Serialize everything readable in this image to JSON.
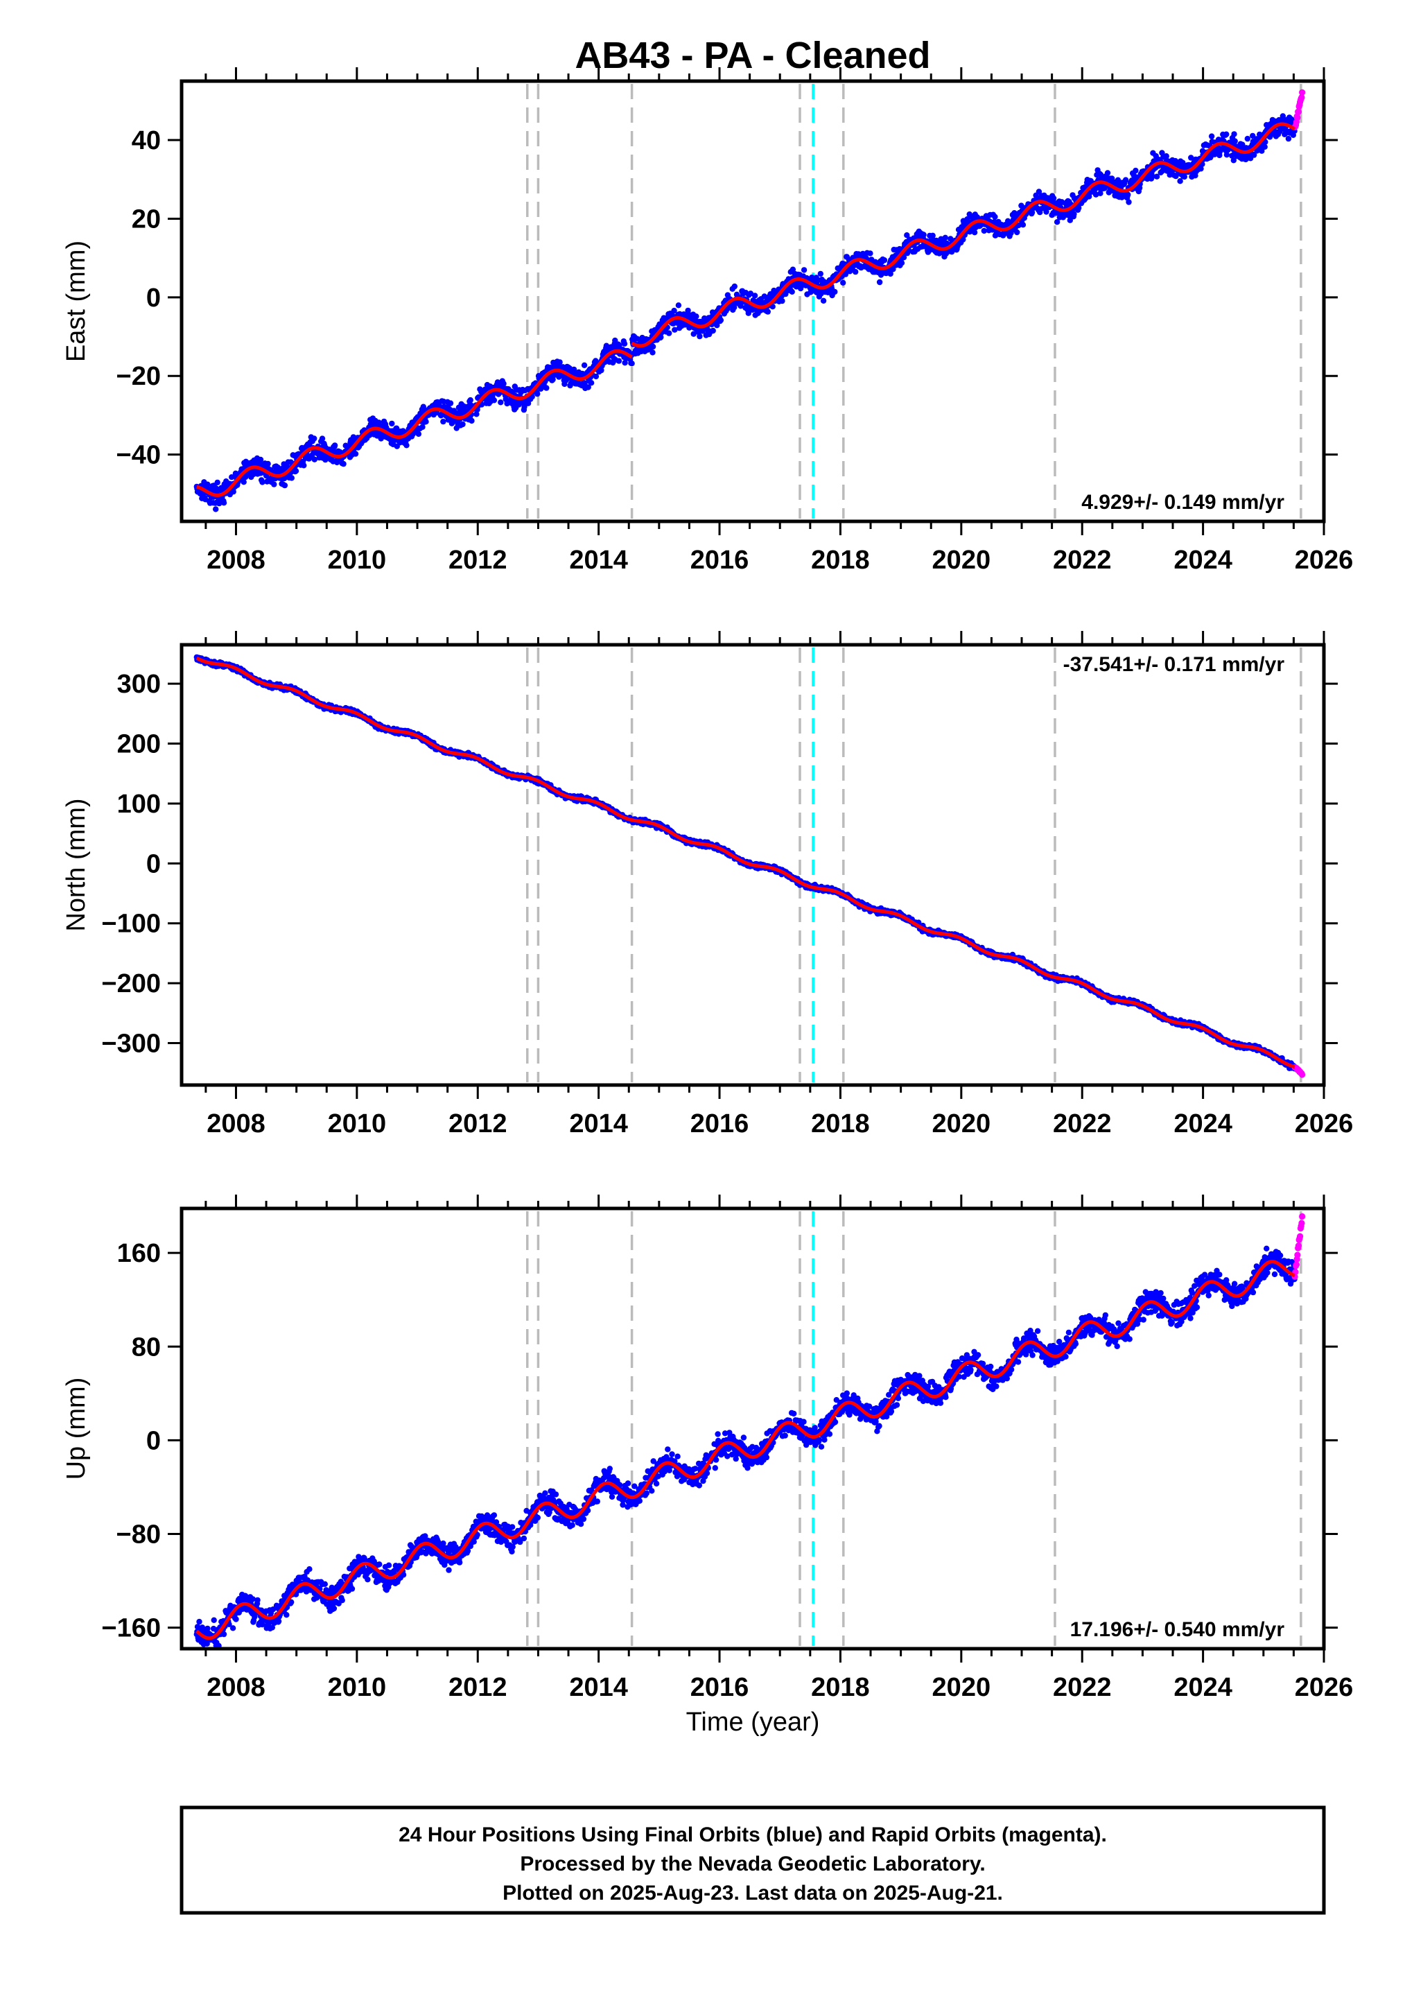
{
  "title": "AB43  - PA - Cleaned",
  "x_axis_label": "Time (year)",
  "footer_lines": [
    "24 Hour Positions Using Final Orbits (blue) and Rapid Orbits (magenta).",
    "Processed by the Nevada Geodetic Laboratory.",
    "Plotted on 2025-Aug-23. Last data on 2025-Aug-21."
  ],
  "colors": {
    "final_orbits": "#0000ff",
    "rapid_orbits": "#ff00ff",
    "model_fit": "#ff0000",
    "equipment_change": "#bbbbbb",
    "earthquake": "#00ffff"
  },
  "chart_data": [
    {
      "type": "scatter",
      "ylabel": "East (mm)",
      "rate_label": "4.929+/- 0.149 mm/yr",
      "rate_position": "bottom-right",
      "xlim": [
        2007.1,
        2026.0
      ],
      "ylim": [
        -57,
        55
      ],
      "x_ticks": [
        2008,
        2010,
        2012,
        2014,
        2016,
        2018,
        2020,
        2022,
        2024,
        2026
      ],
      "y_ticks": [
        -40,
        -20,
        0,
        20,
        40
      ],
      "y_tick_labels": [
        "−40",
        "−20",
        "0",
        "20",
        "40"
      ],
      "start": 2007.35,
      "end_final": 2025.52,
      "end": 2025.64,
      "value_at_start": -50,
      "rate_mm_per_yr": 4.929,
      "annual_amplitude": 2.2,
      "annual_phase": 0.0,
      "noise": 1.3,
      "offsets": [
        {
          "t": 2014.55,
          "dy": 3.5
        }
      ],
      "rapid_end_value": 52,
      "series": [
        {
          "name": "Final Orbits (blue)",
          "role": "daily positions"
        },
        {
          "name": "Rapid Orbits (magenta)",
          "role": "daily positions"
        },
        {
          "role": "model fit"
        }
      ],
      "equipment_change_years": [
        2012.82,
        2013.0,
        2014.55,
        2017.33,
        2018.05,
        2021.55,
        2025.62
      ],
      "earthquake_years": [
        2017.55
      ],
      "grid": false
    },
    {
      "type": "scatter",
      "ylabel": "North (mm)",
      "rate_label": "-37.541+/- 0.171 mm/yr",
      "rate_position": "top-right",
      "xlim": [
        2007.1,
        2026.0
      ],
      "ylim": [
        -370,
        365
      ],
      "x_ticks": [
        2008,
        2010,
        2012,
        2014,
        2016,
        2018,
        2020,
        2022,
        2024,
        2026
      ],
      "y_ticks": [
        -300,
        -200,
        -100,
        0,
        100,
        200,
        300
      ],
      "y_tick_labels": [
        "−300",
        "−200",
        "−100",
        "0",
        "100",
        "200",
        "300"
      ],
      "start": 2007.35,
      "end_final": 2025.52,
      "end": 2025.64,
      "value_at_start": 346,
      "rate_mm_per_yr": -37.541,
      "annual_amplitude": 4.0,
      "annual_phase": 0.3,
      "noise": 2.0,
      "offsets": [],
      "rapid_end_value": -352,
      "series": [
        {
          "name": "Final Orbits (blue)",
          "role": "daily positions"
        },
        {
          "name": "Rapid Orbits (magenta)",
          "role": "daily positions"
        },
        {
          "role": "model fit"
        }
      ],
      "equipment_change_years": [
        2012.82,
        2013.0,
        2014.55,
        2017.33,
        2018.05,
        2021.55,
        2025.62
      ],
      "earthquake_years": [
        2017.55
      ],
      "grid": false
    },
    {
      "type": "scatter",
      "ylabel": "Up (mm)",
      "rate_label": "17.196+/- 0.540 mm/yr",
      "rate_position": "bottom-right",
      "xlim": [
        2007.1,
        2026.0
      ],
      "ylim": [
        -178,
        198
      ],
      "x_ticks": [
        2008,
        2010,
        2012,
        2014,
        2016,
        2018,
        2020,
        2022,
        2024,
        2026
      ],
      "y_ticks": [
        -160,
        -80,
        0,
        80,
        160
      ],
      "y_tick_labels": [
        "−160",
        "−80",
        "0",
        "80",
        "160"
      ],
      "start": 2007.35,
      "end_final": 2025.52,
      "end": 2025.64,
      "value_at_start": -163,
      "rate_mm_per_yr": 17.196,
      "annual_amplitude": 10.0,
      "annual_phase": 0.15,
      "noise": 5.0,
      "offsets": [],
      "rapid_end_value": 190,
      "series": [
        {
          "name": "Final Orbits (blue)",
          "role": "daily positions"
        },
        {
          "name": "Rapid Orbits (magenta)",
          "role": "daily positions"
        },
        {
          "role": "model fit"
        }
      ],
      "equipment_change_years": [
        2012.82,
        2013.0,
        2014.55,
        2017.33,
        2018.05,
        2021.55,
        2025.62
      ],
      "earthquake_years": [
        2017.55
      ],
      "grid": false
    }
  ]
}
